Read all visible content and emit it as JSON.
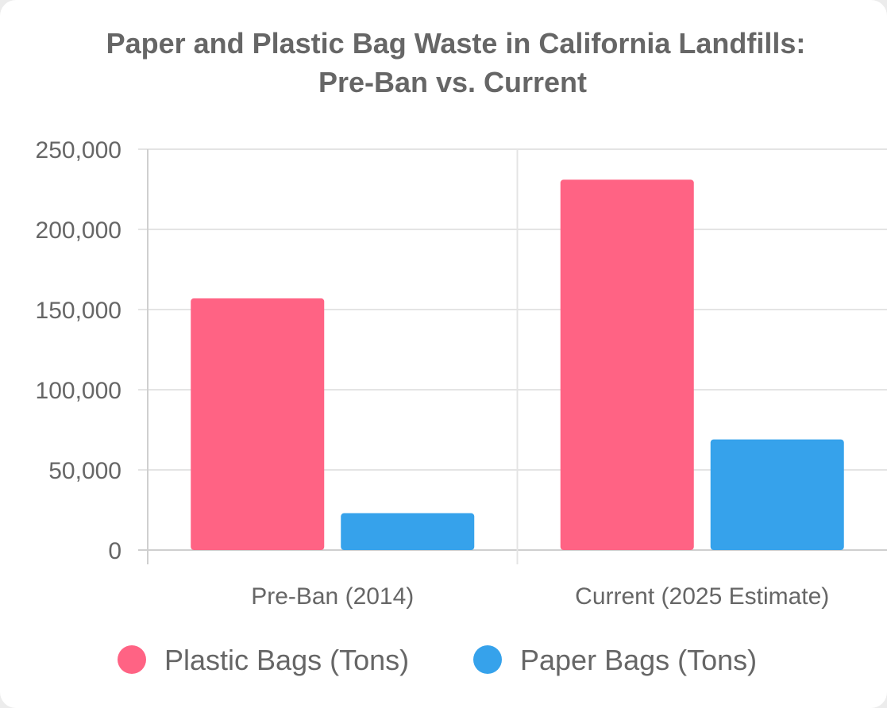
{
  "chart_data": {
    "type": "bar",
    "title": [
      "Paper and Plastic Bag Waste in California Landfills:",
      "Pre-Ban vs. Current"
    ],
    "categories": [
      "Pre-Ban (2014)",
      "Current (2025 Estimate)"
    ],
    "series": [
      {
        "name": "Plastic Bags (Tons)",
        "values": [
          157000,
          231000
        ],
        "color": "#ff6384"
      },
      {
        "name": "Paper Bags (Tons)",
        "values": [
          23000,
          69000
        ],
        "color": "#36a2eb"
      }
    ],
    "y_ticks": [
      "0",
      "50,000",
      "100,000",
      "150,000",
      "200,000",
      "250,000"
    ],
    "ylim": [
      0,
      250000
    ],
    "grid": true,
    "legend_position": "bottom"
  }
}
